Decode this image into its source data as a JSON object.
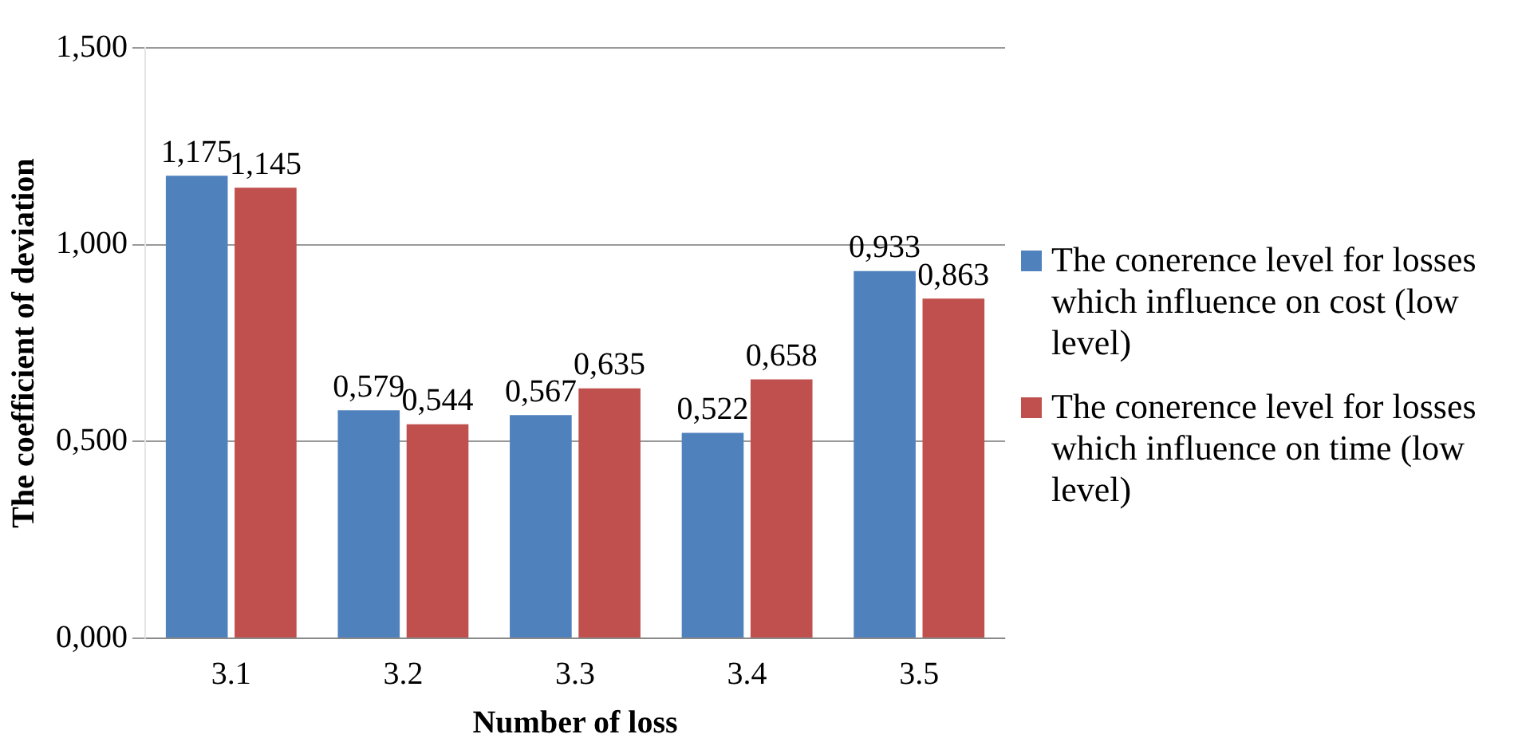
{
  "chart_data": {
    "type": "bar",
    "xlabel": "Number of loss",
    "ylabel": "The coefficient of deviation",
    "categories": [
      "3.1",
      "3.2",
      "3.3",
      "3.4",
      "3.5"
    ],
    "series": [
      {
        "name": "The conerence level for losses which influence on cost (low level)",
        "color": "#4f81bd",
        "values": [
          1.175,
          0.579,
          0.567,
          0.522,
          0.933
        ],
        "value_labels": [
          "1,175",
          "0,579",
          "0,567",
          "0,522",
          "0,933"
        ]
      },
      {
        "name": "The conerence level for losses which influence on time (low level)",
        "color": "#c0504d",
        "values": [
          1.145,
          0.544,
          0.635,
          0.658,
          0.863
        ],
        "value_labels": [
          "1,145",
          "0,544",
          "0,635",
          "0,658",
          "0,863"
        ]
      }
    ],
    "ylim": [
      0,
      1.5
    ],
    "yticks": [
      {
        "value": 0,
        "label": "0,000"
      },
      {
        "value": 0.5,
        "label": "0,500"
      },
      {
        "value": 1,
        "label": "1,000"
      },
      {
        "value": 1.5,
        "label": "1,500"
      }
    ],
    "grid": "y",
    "legend": "right"
  }
}
